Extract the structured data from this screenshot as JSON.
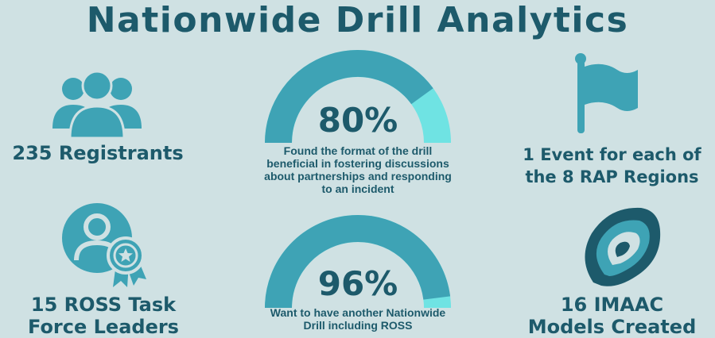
{
  "title": "Nationwide Drill Analytics",
  "colors": {
    "background": "#cfe1e3",
    "primary": "#1d5a6b",
    "accent": "#3ea3b5",
    "highlight": "#6fe3e3"
  },
  "stats": {
    "registrants": {
      "icon": "people-group-icon",
      "label": "235 Registrants"
    },
    "events": {
      "icon": "flag-icon",
      "line1": "1 Event for each of",
      "line2": "the 8 RAP Regions"
    },
    "leaders": {
      "icon": "user-badge-icon",
      "line1": "15 ROSS Task",
      "line2": "Force Leaders"
    },
    "models": {
      "icon": "imaac-swirl-icon",
      "line1": "16 IMAAC",
      "line2": "Models Created"
    }
  },
  "gauges": [
    {
      "value": 80,
      "percent_label": "80%",
      "desc_lines": [
        "Found the format of the drill",
        "beneficial in fostering discussions",
        "about partnerships and responding",
        "to an incident"
      ]
    },
    {
      "value": 96,
      "percent_label": "96%",
      "desc_lines": [
        "Want to have another Nationwide",
        "Drill including ROSS"
      ]
    }
  ]
}
